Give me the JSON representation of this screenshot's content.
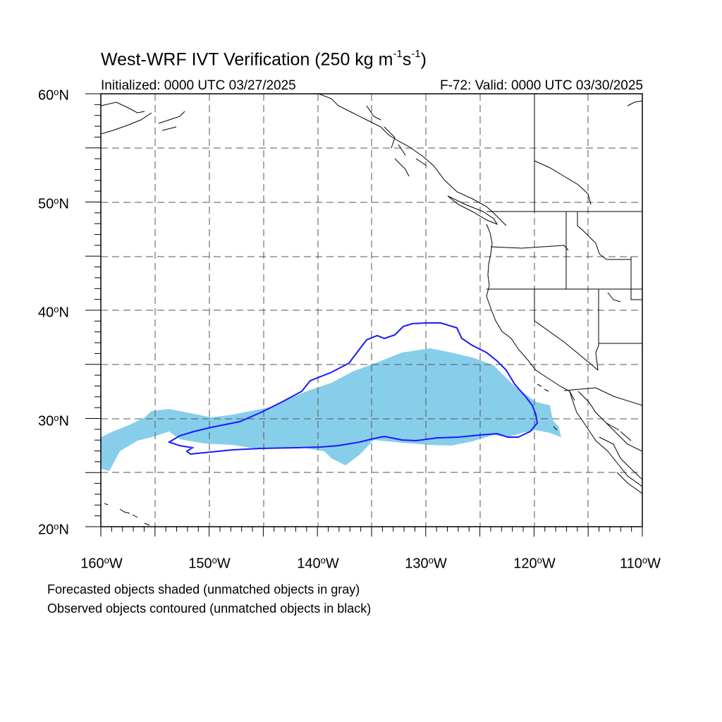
{
  "title": {
    "main": "West-WRF IVT Verification (250 kg m",
    "exp1": "-1",
    "mid": "s",
    "exp2": "-1",
    "end": ")"
  },
  "subtitle_left": "Initialized: 0000 UTC 03/27/2025",
  "subtitle_right": "F-72: Valid: 0000 UTC 03/30/2025",
  "map": {
    "lon_range": [
      -160,
      -110
    ],
    "lat_range": [
      20,
      60
    ],
    "grid_spacing_deg": 5,
    "grid_style": "dashed",
    "forecast_fill_color": "#87CEEB",
    "observed_contour_color": "#1a1aff"
  },
  "lat_labels": [
    {
      "num": "60",
      "suffix": "N"
    },
    {
      "num": "50",
      "suffix": "N"
    },
    {
      "num": "40",
      "suffix": "N"
    },
    {
      "num": "30",
      "suffix": "N"
    },
    {
      "num": "20",
      "suffix": "N"
    }
  ],
  "lon_labels": [
    {
      "num": "160",
      "suffix": "W"
    },
    {
      "num": "150",
      "suffix": "W"
    },
    {
      "num": "140",
      "suffix": "W"
    },
    {
      "num": "130",
      "suffix": "W"
    },
    {
      "num": "120",
      "suffix": "W"
    },
    {
      "num": "110",
      "suffix": "W"
    }
  ],
  "notes": [
    "Forecasted objects shaded (unmatched objects in gray)",
    "Observed objects contoured (unmatched objects in black)"
  ]
}
